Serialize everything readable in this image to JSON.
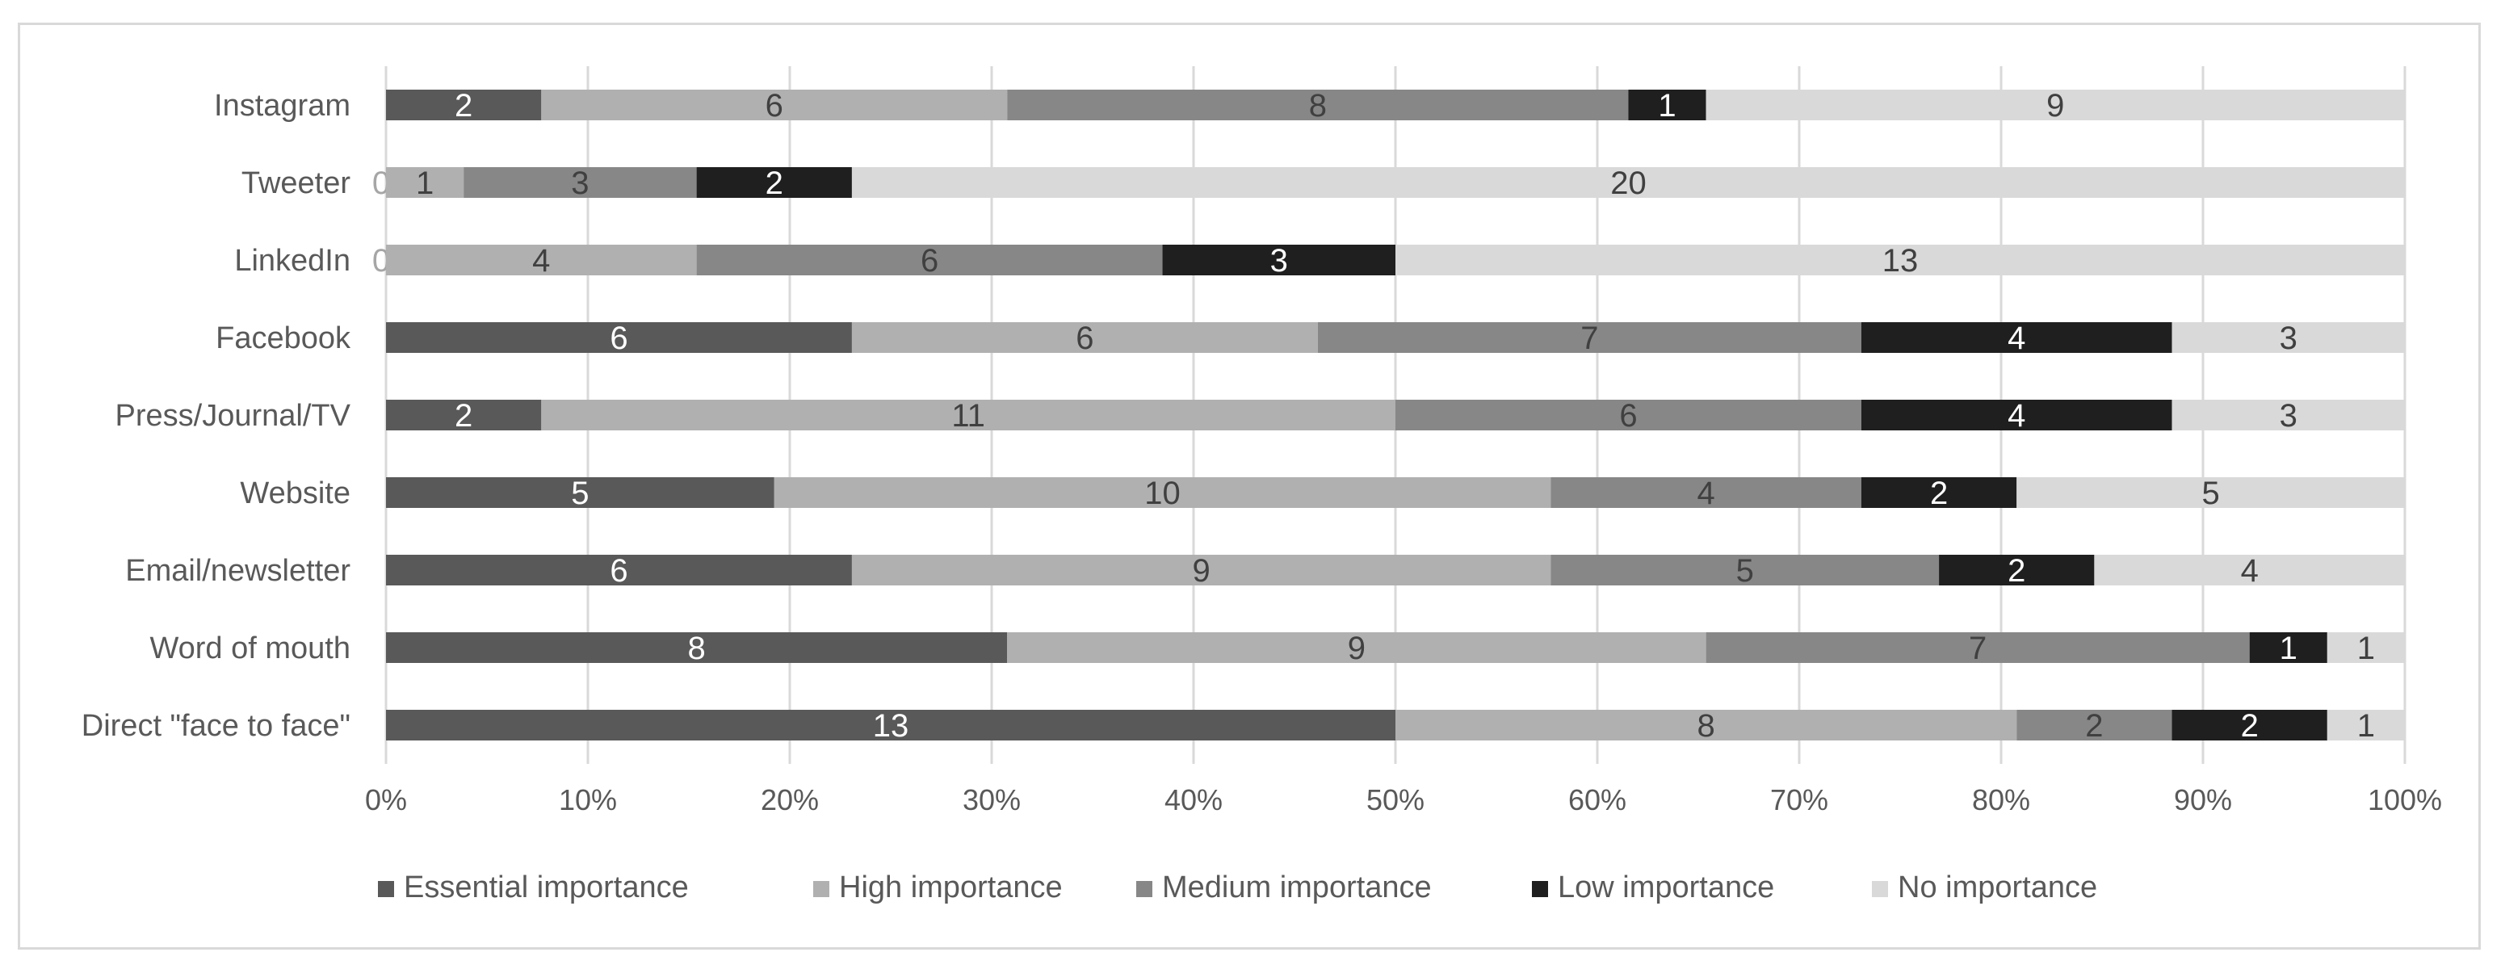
{
  "chart_data": {
    "type": "bar",
    "orientation": "horizontal",
    "stacked": "percent",
    "categories": [
      "Instagram",
      "Tweeter",
      "LinkedIn",
      "Facebook",
      "Press/Journal/TV",
      "Website",
      "Email/newsletter",
      "Word of mouth",
      "Direct \"face to face\""
    ],
    "series": [
      {
        "name": "Essential importance",
        "color": "#595959",
        "label_color": "#ffffff",
        "values": [
          2,
          0,
          0,
          6,
          2,
          5,
          6,
          8,
          13
        ]
      },
      {
        "name": "High importance",
        "color": "#b0b0b0",
        "label_color": "#404040",
        "values": [
          6,
          1,
          4,
          6,
          11,
          10,
          9,
          9,
          8
        ]
      },
      {
        "name": "Medium importance",
        "color": "#878787",
        "label_color": "#404040",
        "values": [
          8,
          3,
          6,
          7,
          6,
          4,
          5,
          7,
          2
        ]
      },
      {
        "name": "Low importance",
        "color": "#1f1f1f",
        "label_color": "#ffffff",
        "values": [
          1,
          2,
          3,
          4,
          4,
          2,
          2,
          1,
          2
        ]
      },
      {
        "name": "No importance",
        "color": "#d9d9d9",
        "label_color": "#404040",
        "values": [
          9,
          20,
          13,
          3,
          3,
          5,
          4,
          1,
          1
        ]
      }
    ],
    "x_ticks": [
      "0%",
      "10%",
      "20%",
      "30%",
      "40%",
      "50%",
      "60%",
      "70%",
      "80%",
      "90%",
      "100%"
    ],
    "xlim": [
      0,
      100
    ],
    "grid": "vertical",
    "legend_position": "bottom",
    "title": "",
    "xlabel": "",
    "ylabel": ""
  }
}
